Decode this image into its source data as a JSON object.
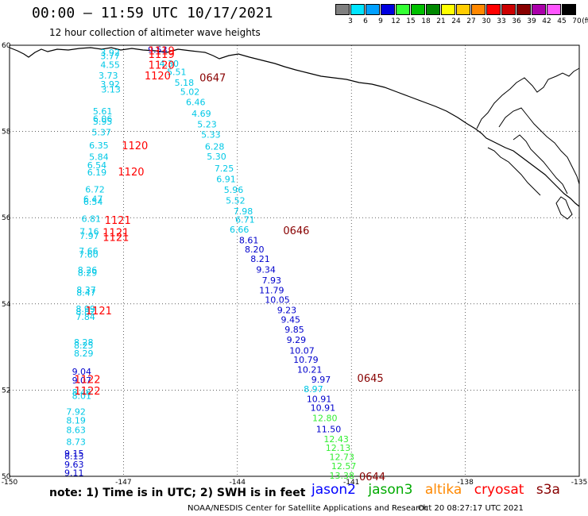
{
  "header": {
    "title": "00:00 – 11:59 UTC 10/17/2021",
    "subtitle": "12 hour collection of altimeter wave heights"
  },
  "legend": {
    "unit": "(ft)",
    "bins": [
      {
        "label": "3",
        "color": "#808080"
      },
      {
        "label": "6",
        "color": "#00e5ff"
      },
      {
        "label": "9",
        "color": "#00a0ff"
      },
      {
        "label": "12",
        "color": "#0000e0"
      },
      {
        "label": "15",
        "color": "#33ff33"
      },
      {
        "label": "18",
        "color": "#00c000"
      },
      {
        "label": "21",
        "color": "#008800"
      },
      {
        "label": "24",
        "color": "#ffff00"
      },
      {
        "label": "27",
        "color": "#ffcc00"
      },
      {
        "label": "30",
        "color": "#ff8800"
      },
      {
        "label": "33",
        "color": "#ff0000"
      },
      {
        "label": "36",
        "color": "#cc0000"
      },
      {
        "label": "39",
        "color": "#880000"
      },
      {
        "label": "42",
        "color": "#aa00aa"
      },
      {
        "label": "45",
        "color": "#ff55ff"
      },
      {
        "label": "70",
        "color": "#000000"
      }
    ]
  },
  "axes": {
    "lon_ticks": [
      "-150",
      "-147",
      "-144",
      "-141",
      "-138",
      "-135"
    ],
    "lat_ticks": [
      "60",
      "58",
      "56",
      "54",
      "52",
      "50"
    ],
    "lon_range": [
      -150,
      -135
    ],
    "lat_range": [
      50,
      60
    ]
  },
  "colors": {
    "cyan": "#00c8e6",
    "blue": "#0000cc",
    "green": "#33ee33",
    "red": "#ff0000",
    "darkred": "#880000"
  },
  "tracks": [
    {
      "name": "western-track",
      "points": [
        {
          "lat": 59.83,
          "lon": -147.35,
          "v": "3.92",
          "c": "cyan"
        },
        {
          "lat": 59.75,
          "lon": -147.35,
          "v": "3.77",
          "c": "cyan"
        },
        {
          "lat": 59.55,
          "lon": -147.35,
          "v": "4.55",
          "c": "cyan"
        },
        {
          "lat": 59.3,
          "lon": -147.4,
          "v": "3.73",
          "c": "cyan"
        },
        {
          "lat": 59.1,
          "lon": -147.35,
          "v": "3.92",
          "c": "cyan"
        },
        {
          "lat": 58.98,
          "lon": -147.33,
          "v": "3.13",
          "c": "cyan"
        },
        {
          "lat": 58.47,
          "lon": -147.55,
          "v": "5.61",
          "c": "cyan"
        },
        {
          "lat": 58.3,
          "lon": -147.55,
          "v": "6.06",
          "c": "cyan"
        },
        {
          "lat": 58.23,
          "lon": -147.55,
          "v": "5.95",
          "c": "cyan"
        },
        {
          "lat": 57.98,
          "lon": -147.58,
          "v": "5.37",
          "c": "cyan"
        },
        {
          "lat": 57.68,
          "lon": -147.65,
          "v": "6.35",
          "c": "cyan"
        },
        {
          "lat": 57.41,
          "lon": -147.65,
          "v": "5.84",
          "c": "cyan"
        },
        {
          "lat": 57.22,
          "lon": -147.7,
          "v": "6.54",
          "c": "cyan"
        },
        {
          "lat": 57.05,
          "lon": -147.7,
          "v": "6.19",
          "c": "cyan"
        },
        {
          "lat": 56.66,
          "lon": -147.75,
          "v": "6.72",
          "c": "cyan"
        },
        {
          "lat": 56.44,
          "lon": -147.8,
          "v": "6.47",
          "c": "cyan"
        },
        {
          "lat": 56.37,
          "lon": -147.8,
          "v": "6.54",
          "c": "cyan"
        },
        {
          "lat": 55.98,
          "lon": -147.85,
          "v": "6.81",
          "c": "cyan"
        },
        {
          "lat": 55.68,
          "lon": -147.9,
          "v": "7.16",
          "c": "cyan"
        },
        {
          "lat": 55.58,
          "lon": -147.9,
          "v": "7.97",
          "c": "cyan"
        },
        {
          "lat": 55.23,
          "lon": -147.92,
          "v": "7.66",
          "c": "cyan"
        },
        {
          "lat": 55.15,
          "lon": -147.92,
          "v": "7.60",
          "c": "cyan"
        },
        {
          "lat": 54.79,
          "lon": -147.95,
          "v": "8.26",
          "c": "cyan"
        },
        {
          "lat": 54.72,
          "lon": -147.95,
          "v": "8.29",
          "c": "cyan"
        },
        {
          "lat": 54.33,
          "lon": -147.98,
          "v": "8.37",
          "c": "cyan"
        },
        {
          "lat": 54.26,
          "lon": -147.98,
          "v": "8.47",
          "c": "cyan"
        },
        {
          "lat": 53.89,
          "lon": -148.0,
          "v": "8.99",
          "c": "cyan"
        },
        {
          "lat": 53.82,
          "lon": -148.0,
          "v": "8.82",
          "c": "cyan"
        },
        {
          "lat": 53.7,
          "lon": -148.0,
          "v": "7.84",
          "c": "cyan"
        },
        {
          "lat": 53.11,
          "lon": -148.05,
          "v": "8.28",
          "c": "cyan"
        },
        {
          "lat": 53.04,
          "lon": -148.05,
          "v": "8.25",
          "c": "cyan"
        },
        {
          "lat": 52.85,
          "lon": -148.05,
          "v": "8.29",
          "c": "cyan"
        },
        {
          "lat": 52.43,
          "lon": -148.1,
          "v": "9.04",
          "c": "blue"
        },
        {
          "lat": 52.23,
          "lon": -148.1,
          "v": "9.07",
          "c": "blue"
        },
        {
          "lat": 51.95,
          "lon": -148.1,
          "v": "8.46",
          "c": "cyan"
        },
        {
          "lat": 51.87,
          "lon": -148.1,
          "v": "8.01",
          "c": "cyan"
        },
        {
          "lat": 51.5,
          "lon": -148.25,
          "v": "7.92",
          "c": "cyan"
        },
        {
          "lat": 51.3,
          "lon": -148.25,
          "v": "8.19",
          "c": "cyan"
        },
        {
          "lat": 51.08,
          "lon": -148.25,
          "v": "8.63",
          "c": "cyan"
        },
        {
          "lat": 50.8,
          "lon": -148.25,
          "v": "8.73",
          "c": "cyan"
        },
        {
          "lat": 50.53,
          "lon": -148.3,
          "v": "9.15",
          "c": "blue"
        },
        {
          "lat": 50.47,
          "lon": -148.3,
          "v": "8.13",
          "c": "blue"
        },
        {
          "lat": 50.28,
          "lon": -148.3,
          "v": "9.63",
          "c": "blue"
        },
        {
          "lat": 50.08,
          "lon": -148.3,
          "v": "9.11",
          "c": "blue"
        }
      ]
    },
    {
      "name": "eastern-track",
      "points": [
        {
          "lat": 59.9,
          "lon": -146.1,
          "v": "9.53",
          "c": "blue"
        },
        {
          "lat": 59.58,
          "lon": -145.8,
          "v": "4.30",
          "c": "cyan"
        },
        {
          "lat": 59.38,
          "lon": -145.6,
          "v": "5.51",
          "c": "cyan"
        },
        {
          "lat": 59.13,
          "lon": -145.4,
          "v": "5.18",
          "c": "cyan"
        },
        {
          "lat": 58.92,
          "lon": -145.25,
          "v": "5.02",
          "c": "cyan"
        },
        {
          "lat": 58.68,
          "lon": -145.1,
          "v": "6.46",
          "c": "cyan"
        },
        {
          "lat": 58.42,
          "lon": -144.95,
          "v": "4.69",
          "c": "cyan"
        },
        {
          "lat": 58.17,
          "lon": -144.8,
          "v": "5.23",
          "c": "cyan"
        },
        {
          "lat": 57.93,
          "lon": -144.7,
          "v": "5.33",
          "c": "cyan"
        },
        {
          "lat": 57.65,
          "lon": -144.6,
          "v": "6.28",
          "c": "cyan"
        },
        {
          "lat": 57.42,
          "lon": -144.55,
          "v": "5.30",
          "c": "cyan"
        },
        {
          "lat": 57.15,
          "lon": -144.35,
          "v": "7.25",
          "c": "cyan"
        },
        {
          "lat": 56.9,
          "lon": -144.3,
          "v": "6.91",
          "c": "cyan"
        },
        {
          "lat": 56.65,
          "lon": -144.1,
          "v": "5.96",
          "c": "cyan"
        },
        {
          "lat": 56.4,
          "lon": -144.05,
          "v": "5.52",
          "c": "cyan"
        },
        {
          "lat": 56.15,
          "lon": -143.85,
          "v": "7.98",
          "c": "cyan"
        },
        {
          "lat": 55.96,
          "lon": -143.8,
          "v": "6.71",
          "c": "cyan"
        },
        {
          "lat": 55.73,
          "lon": -143.95,
          "v": "6.66",
          "c": "cyan"
        },
        {
          "lat": 55.48,
          "lon": -143.7,
          "v": "8.61",
          "c": "blue"
        },
        {
          "lat": 55.27,
          "lon": -143.55,
          "v": "8.20",
          "c": "blue"
        },
        {
          "lat": 55.05,
          "lon": -143.4,
          "v": "8.21",
          "c": "blue"
        },
        {
          "lat": 54.8,
          "lon": -143.25,
          "v": "9.34",
          "c": "blue"
        },
        {
          "lat": 54.55,
          "lon": -143.1,
          "v": "7.93",
          "c": "blue"
        },
        {
          "lat": 54.32,
          "lon": -143.1,
          "v": "11.79",
          "c": "blue"
        },
        {
          "lat": 54.1,
          "lon": -142.95,
          "v": "10.05",
          "c": "blue"
        },
        {
          "lat": 53.86,
          "lon": -142.7,
          "v": "9.23",
          "c": "blue"
        },
        {
          "lat": 53.64,
          "lon": -142.6,
          "v": "9.45",
          "c": "blue"
        },
        {
          "lat": 53.41,
          "lon": -142.5,
          "v": "9.85",
          "c": "blue"
        },
        {
          "lat": 53.17,
          "lon": -142.45,
          "v": "9.29",
          "c": "blue"
        },
        {
          "lat": 52.92,
          "lon": -142.3,
          "v": "10.07",
          "c": "blue"
        },
        {
          "lat": 52.71,
          "lon": -142.2,
          "v": "10.79",
          "c": "blue"
        },
        {
          "lat": 52.48,
          "lon": -142.1,
          "v": "10.21",
          "c": "blue"
        },
        {
          "lat": 52.25,
          "lon": -141.8,
          "v": "9.97",
          "c": "blue"
        },
        {
          "lat": 52.03,
          "lon": -142.0,
          "v": "8.97",
          "c": "cyan"
        },
        {
          "lat": 51.8,
          "lon": -141.85,
          "v": "10.91",
          "c": "blue"
        },
        {
          "lat": 51.59,
          "lon": -141.75,
          "v": "10.91",
          "c": "blue"
        },
        {
          "lat": 51.35,
          "lon": -141.7,
          "v": "12.80",
          "c": "green"
        },
        {
          "lat": 51.1,
          "lon": -141.6,
          "v": "11.50",
          "c": "blue"
        },
        {
          "lat": 50.87,
          "lon": -141.4,
          "v": "12.43",
          "c": "green"
        },
        {
          "lat": 50.66,
          "lon": -141.35,
          "v": "12.13",
          "c": "green"
        },
        {
          "lat": 50.45,
          "lon": -141.25,
          "v": "12.73",
          "c": "green"
        },
        {
          "lat": 50.24,
          "lon": -141.2,
          "v": "12.57",
          "c": "green"
        },
        {
          "lat": 50.02,
          "lon": -141.25,
          "v": "13.38",
          "c": "green"
        }
      ]
    }
  ],
  "time_labels": [
    {
      "lat": 59.88,
      "lon": -146.0,
      "t": "1119",
      "c": "red"
    },
    {
      "lat": 59.8,
      "lon": -146.0,
      "t": "1119",
      "c": "red"
    },
    {
      "lat": 59.55,
      "lon": -146.0,
      "t": "1120",
      "c": "red"
    },
    {
      "lat": 59.3,
      "lon": -146.1,
      "t": "1120",
      "c": "red"
    },
    {
      "lat": 59.25,
      "lon": -144.65,
      "t": "0647",
      "c": "darkred"
    },
    {
      "lat": 57.68,
      "lon": -146.7,
      "t": "1120",
      "c": "red"
    },
    {
      "lat": 57.07,
      "lon": -146.8,
      "t": "1120",
      "c": "red"
    },
    {
      "lat": 55.95,
      "lon": -147.15,
      "t": "1121",
      "c": "red"
    },
    {
      "lat": 55.66,
      "lon": -147.2,
      "t": "1121",
      "c": "red"
    },
    {
      "lat": 55.55,
      "lon": -147.2,
      "t": "1121",
      "c": "red"
    },
    {
      "lat": 55.71,
      "lon": -142.45,
      "t": "0646",
      "c": "darkred"
    },
    {
      "lat": 53.85,
      "lon": -147.65,
      "t": "1121",
      "c": "red"
    },
    {
      "lat": 52.26,
      "lon": -147.95,
      "t": "1122",
      "c": "red"
    },
    {
      "lat": 51.99,
      "lon": -147.95,
      "t": "1122",
      "c": "red"
    },
    {
      "lat": 52.28,
      "lon": -140.5,
      "t": "0645",
      "c": "darkred"
    },
    {
      "lat": 50.0,
      "lon": -140.45,
      "t": "0644",
      "c": "darkred"
    }
  ],
  "satellites": [
    {
      "name": "jason2",
      "color": "#0000ff"
    },
    {
      "name": "jason3",
      "color": "#00aa00"
    },
    {
      "name": "altika",
      "color": "#ff8800"
    },
    {
      "name": "cryosat",
      "color": "#ff0000"
    },
    {
      "name": "s3a",
      "color": "#880000"
    }
  ],
  "footer": {
    "note": "note: 1) Time is in UTC; 2) SWH is in feet",
    "credit": "NOAA/NESDIS Center for Satellite Applications and Research",
    "timestamp": "Oct 20 08:27:17 UTC 2021"
  }
}
